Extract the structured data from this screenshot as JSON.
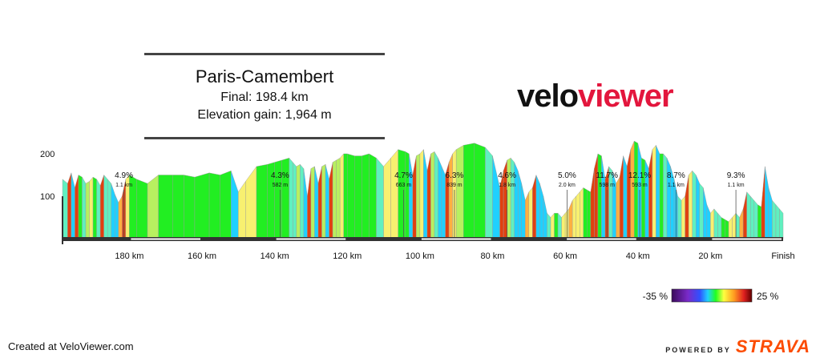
{
  "title": "Paris-Camembert",
  "final": "Final: 198.4 km",
  "elevation_gain": "Elevation gain: 1,964 m",
  "logo": {
    "part1": "velo",
    "part2": "viewer"
  },
  "footer": {
    "created": "Created at VeloViewer.com",
    "powered": "POWERED BY",
    "strava": "STRAVA"
  },
  "legend": {
    "min_label": "-35 %",
    "max_label": "25 %"
  },
  "chart_data": {
    "type": "area",
    "xlabel": "",
    "ylabel": "",
    "x_ticks": [
      "180 km",
      "160 km",
      "140 km",
      "120 km",
      "100 km",
      "80 km",
      "60 km",
      "40 km",
      "20 km",
      "Finish"
    ],
    "x_tick_km": [
      180,
      160,
      140,
      120,
      100,
      80,
      60,
      40,
      20,
      0
    ],
    "y_ticks": [
      100,
      200
    ],
    "xlim": [
      198.4,
      0
    ],
    "ylim": [
      0,
      260
    ],
    "profile_km_to_finish": [
      198.4,
      197,
      196,
      195,
      194,
      193,
      192,
      191,
      190,
      189,
      188,
      187,
      186,
      185,
      184,
      183,
      182,
      181,
      180,
      178,
      175,
      172,
      168,
      165,
      162,
      158,
      155,
      152,
      150,
      148,
      145,
      142,
      140,
      138,
      136,
      135,
      134,
      133,
      132,
      131,
      130,
      129,
      128,
      127,
      126,
      125,
      124,
      123,
      122,
      121,
      120,
      118,
      116,
      114,
      112,
      110,
      108,
      106,
      104,
      103,
      102,
      101,
      100,
      99,
      98,
      97,
      96,
      95,
      94,
      93,
      92,
      91,
      90,
      88,
      85,
      82,
      80,
      78,
      77,
      76,
      75,
      74,
      73,
      72,
      71,
      70,
      69,
      68,
      67,
      66,
      65,
      64,
      63,
      62,
      61,
      60,
      59,
      58,
      57,
      56,
      55,
      54,
      53,
      52,
      51,
      50,
      49,
      48,
      47,
      46,
      45,
      44,
      43,
      42,
      41,
      40,
      39,
      38,
      37,
      36,
      35,
      34,
      33,
      32,
      31,
      30,
      29,
      28,
      27,
      26,
      25,
      24,
      23,
      22,
      21,
      20,
      19,
      18,
      17,
      16,
      15,
      14,
      13,
      12,
      11,
      10,
      9,
      8,
      7,
      6,
      5,
      4,
      3,
      2,
      1,
      0
    ],
    "profile_elevation_m": [
      140,
      130,
      155,
      120,
      150,
      145,
      130,
      135,
      145,
      140,
      125,
      150,
      140,
      130,
      105,
      85,
      100,
      140,
      150,
      140,
      130,
      150,
      150,
      150,
      145,
      155,
      150,
      160,
      110,
      135,
      170,
      175,
      180,
      185,
      190,
      180,
      170,
      175,
      165,
      100,
      165,
      170,
      130,
      170,
      175,
      140,
      180,
      185,
      190,
      200,
      200,
      195,
      195,
      200,
      190,
      170,
      190,
      210,
      205,
      200,
      150,
      195,
      200,
      210,
      160,
      200,
      205,
      190,
      170,
      150,
      180,
      200,
      210,
      220,
      225,
      215,
      195,
      120,
      160,
      185,
      190,
      180,
      160,
      130,
      90,
      110,
      120,
      150,
      130,
      100,
      60,
      50,
      60,
      60,
      50,
      60,
      70,
      90,
      100,
      110,
      120,
      115,
      110,
      165,
      200,
      195,
      140,
      170,
      160,
      130,
      145,
      195,
      170,
      210,
      230,
      225,
      190,
      185,
      165,
      210,
      220,
      200,
      200,
      190,
      170,
      140,
      100,
      90,
      100,
      150,
      160,
      150,
      130,
      120,
      80,
      60,
      70,
      60,
      50,
      45,
      40,
      50,
      60,
      50,
      70,
      110,
      100,
      90,
      80,
      75,
      170,
      120,
      90,
      80,
      70,
      60
    ],
    "climbs": [
      {
        "km": 181.5,
        "grade": "4.9%",
        "length": "1.1 km"
      },
      {
        "km": 138.5,
        "grade": "4.3%",
        "length": "582 m"
      },
      {
        "km": 104.5,
        "grade": "4.7%",
        "length": "663 m"
      },
      {
        "km": 90.5,
        "grade": "6.3%",
        "length": "839 m"
      },
      {
        "km": 76.0,
        "grade": "4.6%",
        "length": "1.8 km"
      },
      {
        "km": 59.5,
        "grade": "5.0%",
        "length": "2.0 km"
      },
      {
        "km": 48.5,
        "grade": "11.7%",
        "length": "598 m"
      },
      {
        "km": 39.5,
        "grade": "12.1%",
        "length": "593 m"
      },
      {
        "km": 29.5,
        "grade": "8.7%",
        "length": "1.1 km"
      },
      {
        "km": 13.0,
        "grade": "9.3%",
        "length": "1.1 km"
      }
    ]
  }
}
